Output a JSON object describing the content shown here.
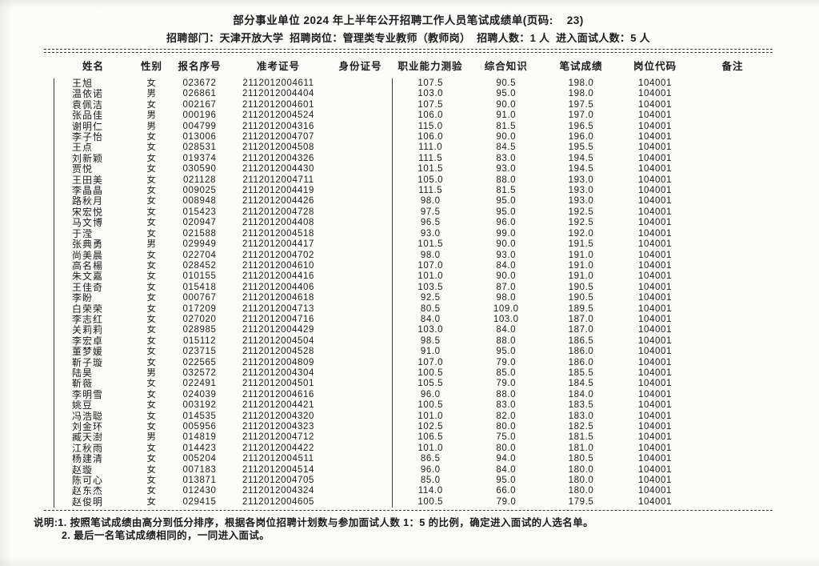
{
  "page": {
    "title": "部分事业单位 2024 年上半年公开招聘工作人员笔试成绩单(页码:    23)",
    "info_line": "招聘部门：天津开放大学  招聘岗位：管理类专业教师（教师岗）  招聘人数：1 人  进入面试人数：5 人"
  },
  "table": {
    "columns": [
      "姓名",
      "性别",
      "报名序号",
      "准考证号",
      "身份证号",
      "职业能力测验",
      "综合知识",
      "笔试成绩",
      "岗位代码",
      "备注"
    ],
    "rows": [
      {
        "name": "王旭",
        "gender": "女",
        "reg_no": "023672",
        "ticket_no": "2112012004611",
        "id_no": "",
        "ability": "107.5",
        "knowledge": "90.5",
        "total": "198.0",
        "post_code": "104001",
        "remark": ""
      },
      {
        "name": "温依诺",
        "gender": "男",
        "reg_no": "026861",
        "ticket_no": "2112012004404",
        "id_no": "",
        "ability": "103.0",
        "knowledge": "95.0",
        "total": "198.0",
        "post_code": "104001",
        "remark": ""
      },
      {
        "name": "袁佩洁",
        "gender": "女",
        "reg_no": "002167",
        "ticket_no": "2112012004601",
        "id_no": "",
        "ability": "107.5",
        "knowledge": "90.0",
        "total": "197.5",
        "post_code": "104001",
        "remark": ""
      },
      {
        "name": "张品佳",
        "gender": "男",
        "reg_no": "000196",
        "ticket_no": "2112012004524",
        "id_no": "",
        "ability": "106.0",
        "knowledge": "91.0",
        "total": "197.0",
        "post_code": "104001",
        "remark": ""
      },
      {
        "name": "谢明仁",
        "gender": "男",
        "reg_no": "004799",
        "ticket_no": "2112012004316",
        "id_no": "",
        "ability": "115.0",
        "knowledge": "81.5",
        "total": "196.5",
        "post_code": "104001",
        "remark": ""
      },
      {
        "name": "李子怡",
        "gender": "女",
        "reg_no": "013006",
        "ticket_no": "2112012004707",
        "id_no": "",
        "ability": "106.0",
        "knowledge": "90.0",
        "total": "196.0",
        "post_code": "104001",
        "remark": ""
      },
      {
        "name": "王点",
        "gender": "女",
        "reg_no": "028531",
        "ticket_no": "2112012004508",
        "id_no": "",
        "ability": "111.0",
        "knowledge": "84.5",
        "total": "195.5",
        "post_code": "104001",
        "remark": ""
      },
      {
        "name": "刘新颖",
        "gender": "女",
        "reg_no": "019374",
        "ticket_no": "2112012004326",
        "id_no": "",
        "ability": "111.5",
        "knowledge": "83.0",
        "total": "194.5",
        "post_code": "104001",
        "remark": ""
      },
      {
        "name": "贾悦",
        "gender": "女",
        "reg_no": "030590",
        "ticket_no": "2112012004430",
        "id_no": "",
        "ability": "101.5",
        "knowledge": "93.0",
        "total": "194.5",
        "post_code": "104001",
        "remark": ""
      },
      {
        "name": "王田美",
        "gender": "女",
        "reg_no": "021128",
        "ticket_no": "2112012004711",
        "id_no": "",
        "ability": "105.0",
        "knowledge": "88.0",
        "total": "193.0",
        "post_code": "104001",
        "remark": ""
      },
      {
        "name": "李晶晶",
        "gender": "女",
        "reg_no": "009025",
        "ticket_no": "2112012004419",
        "id_no": "",
        "ability": "111.5",
        "knowledge": "81.5",
        "total": "193.0",
        "post_code": "104001",
        "remark": ""
      },
      {
        "name": "路秋月",
        "gender": "女",
        "reg_no": "008948",
        "ticket_no": "2112012004426",
        "id_no": "",
        "ability": "98.0",
        "knowledge": "95.0",
        "total": "193.0",
        "post_code": "104001",
        "remark": ""
      },
      {
        "name": "宋宏悦",
        "gender": "女",
        "reg_no": "015423",
        "ticket_no": "2112012004728",
        "id_no": "",
        "ability": "97.5",
        "knowledge": "95.0",
        "total": "192.5",
        "post_code": "104001",
        "remark": ""
      },
      {
        "name": "马文博",
        "gender": "女",
        "reg_no": "020947",
        "ticket_no": "2112012004408",
        "id_no": "",
        "ability": "96.5",
        "knowledge": "96.0",
        "total": "192.5",
        "post_code": "104001",
        "remark": ""
      },
      {
        "name": "于滢",
        "gender": "女",
        "reg_no": "021588",
        "ticket_no": "2112012004518",
        "id_no": "",
        "ability": "93.0",
        "knowledge": "99.0",
        "total": "192.0",
        "post_code": "104001",
        "remark": ""
      },
      {
        "name": "张典勇",
        "gender": "男",
        "reg_no": "029949",
        "ticket_no": "2112012004417",
        "id_no": "",
        "ability": "101.5",
        "knowledge": "90.0",
        "total": "191.5",
        "post_code": "104001",
        "remark": ""
      },
      {
        "name": "尚美晨",
        "gender": "女",
        "reg_no": "022704",
        "ticket_no": "2112012004702",
        "id_no": "",
        "ability": "98.0",
        "knowledge": "93.0",
        "total": "191.0",
        "post_code": "104001",
        "remark": ""
      },
      {
        "name": "高名楊",
        "gender": "女",
        "reg_no": "028452",
        "ticket_no": "2112012004610",
        "id_no": "",
        "ability": "107.0",
        "knowledge": "84.0",
        "total": "191.0",
        "post_code": "104001",
        "remark": ""
      },
      {
        "name": "朱文嘉",
        "gender": "女",
        "reg_no": "010155",
        "ticket_no": "2112012004416",
        "id_no": "",
        "ability": "101.0",
        "knowledge": "90.0",
        "total": "191.0",
        "post_code": "104001",
        "remark": ""
      },
      {
        "name": "王佳奇",
        "gender": "女",
        "reg_no": "015418",
        "ticket_no": "2112012004406",
        "id_no": "",
        "ability": "103.5",
        "knowledge": "87.0",
        "total": "190.5",
        "post_code": "104001",
        "remark": ""
      },
      {
        "name": "李盼",
        "gender": "女",
        "reg_no": "000767",
        "ticket_no": "2112012004618",
        "id_no": "",
        "ability": "92.5",
        "knowledge": "98.0",
        "total": "190.5",
        "post_code": "104001",
        "remark": ""
      },
      {
        "name": "白荣荣",
        "gender": "女",
        "reg_no": "017209",
        "ticket_no": "2112012004713",
        "id_no": "",
        "ability": "80.5",
        "knowledge": "109.0",
        "total": "189.5",
        "post_code": "104001",
        "remark": ""
      },
      {
        "name": "李志红",
        "gender": "女",
        "reg_no": "027020",
        "ticket_no": "2112012004716",
        "id_no": "",
        "ability": "84.0",
        "knowledge": "103.0",
        "total": "187.0",
        "post_code": "104001",
        "remark": ""
      },
      {
        "name": "关莉莉",
        "gender": "女",
        "reg_no": "028985",
        "ticket_no": "2112012004429",
        "id_no": "",
        "ability": "103.0",
        "knowledge": "84.0",
        "total": "187.0",
        "post_code": "104001",
        "remark": ""
      },
      {
        "name": "李宏卓",
        "gender": "女",
        "reg_no": "015112",
        "ticket_no": "2112012004504",
        "id_no": "",
        "ability": "98.5",
        "knowledge": "88.0",
        "total": "186.5",
        "post_code": "104001",
        "remark": ""
      },
      {
        "name": "董梦媛",
        "gender": "女",
        "reg_no": "023715",
        "ticket_no": "2112012004528",
        "id_no": "",
        "ability": "91.0",
        "knowledge": "95.0",
        "total": "186.0",
        "post_code": "104001",
        "remark": ""
      },
      {
        "name": "靳子璇",
        "gender": "女",
        "reg_no": "022565",
        "ticket_no": "2112012004809",
        "id_no": "",
        "ability": "107.0",
        "knowledge": "79.0",
        "total": "186.0",
        "post_code": "104001",
        "remark": ""
      },
      {
        "name": "陆昊",
        "gender": "男",
        "reg_no": "032572",
        "ticket_no": "2112012004304",
        "id_no": "",
        "ability": "100.5",
        "knowledge": "85.0",
        "total": "185.5",
        "post_code": "104001",
        "remark": ""
      },
      {
        "name": "靳薇",
        "gender": "女",
        "reg_no": "022491",
        "ticket_no": "2112012004501",
        "id_no": "",
        "ability": "105.5",
        "knowledge": "79.0",
        "total": "184.5",
        "post_code": "104001",
        "remark": ""
      },
      {
        "name": "李明雪",
        "gender": "女",
        "reg_no": "024039",
        "ticket_no": "2112012004616",
        "id_no": "",
        "ability": "96.0",
        "knowledge": "88.0",
        "total": "184.0",
        "post_code": "104001",
        "remark": ""
      },
      {
        "name": "姚豆",
        "gender": "女",
        "reg_no": "003192",
        "ticket_no": "2112012004421",
        "id_no": "",
        "ability": "100.5",
        "knowledge": "83.0",
        "total": "183.5",
        "post_code": "104001",
        "remark": ""
      },
      {
        "name": "冯浩聪",
        "gender": "女",
        "reg_no": "014535",
        "ticket_no": "2112012004320",
        "id_no": "",
        "ability": "101.0",
        "knowledge": "82.0",
        "total": "183.0",
        "post_code": "104001",
        "remark": ""
      },
      {
        "name": "刘金环",
        "gender": "女",
        "reg_no": "005956",
        "ticket_no": "2112012004323",
        "id_no": "",
        "ability": "102.5",
        "knowledge": "80.0",
        "total": "182.5",
        "post_code": "104001",
        "remark": ""
      },
      {
        "name": "臧天澍",
        "gender": "男",
        "reg_no": "014819",
        "ticket_no": "2112012004712",
        "id_no": "",
        "ability": "106.5",
        "knowledge": "75.0",
        "total": "181.5",
        "post_code": "104001",
        "remark": ""
      },
      {
        "name": "江秋雨",
        "gender": "女",
        "reg_no": "014423",
        "ticket_no": "2112012004422",
        "id_no": "",
        "ability": "101.0",
        "knowledge": "80.0",
        "total": "181.0",
        "post_code": "104001",
        "remark": ""
      },
      {
        "name": "杨建清",
        "gender": "女",
        "reg_no": "005204",
        "ticket_no": "2112012004511",
        "id_no": "",
        "ability": "86.5",
        "knowledge": "94.0",
        "total": "180.5",
        "post_code": "104001",
        "remark": ""
      },
      {
        "name": "赵璇",
        "gender": "女",
        "reg_no": "007183",
        "ticket_no": "2112012004514",
        "id_no": "",
        "ability": "96.0",
        "knowledge": "84.0",
        "total": "180.0",
        "post_code": "104001",
        "remark": ""
      },
      {
        "name": "陈可心",
        "gender": "女",
        "reg_no": "013871",
        "ticket_no": "2112012004705",
        "id_no": "",
        "ability": "85.0",
        "knowledge": "95.0",
        "total": "180.0",
        "post_code": "104001",
        "remark": ""
      },
      {
        "name": "赵东杰",
        "gender": "女",
        "reg_no": "012430",
        "ticket_no": "2112012004324",
        "id_no": "",
        "ability": "114.0",
        "knowledge": "66.0",
        "total": "180.0",
        "post_code": "104001",
        "remark": ""
      },
      {
        "name": "赵俊明",
        "gender": "女",
        "reg_no": "029415",
        "ticket_no": "2112012004605",
        "id_no": "",
        "ability": "100.5",
        "knowledge": "79.0",
        "total": "179.5",
        "post_code": "104001",
        "remark": ""
      }
    ]
  },
  "footer": {
    "note_line_1": "说明:1. 按照笔试成绩由高分到低分排序，根据各岗位招聘计划数与参加面试人数 1：5 的比例，确定进入面试的人选名单。",
    "note_line_2": "2. 最后一名笔试成绩相同的，一同进入面试。"
  }
}
